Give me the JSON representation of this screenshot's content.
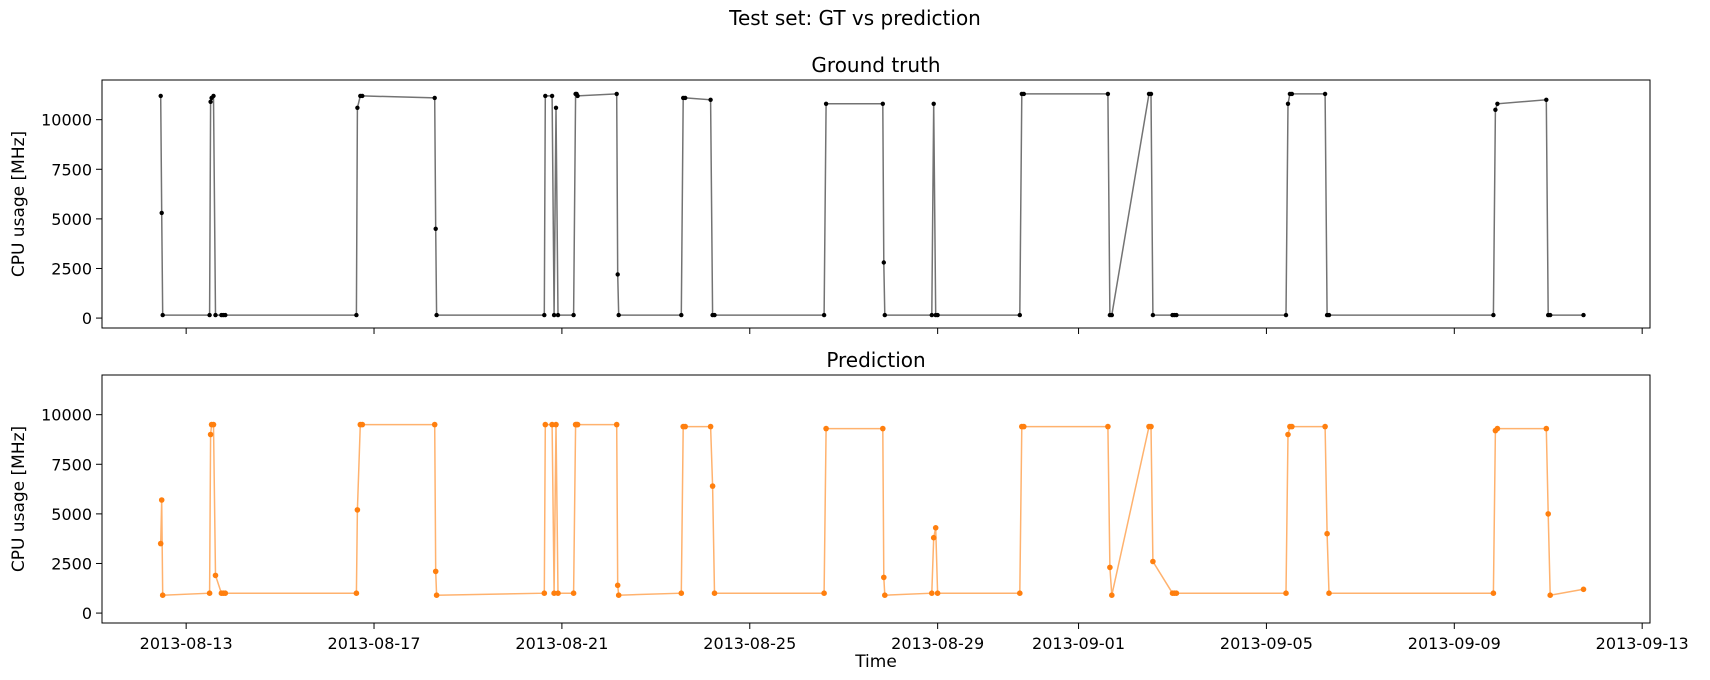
{
  "figure": {
    "suptitle": "Test set: GT vs prediction"
  },
  "chart_data": [
    {
      "type": "line",
      "title": "Ground truth",
      "xlabel": "",
      "ylabel": "CPU usage [MHz]",
      "x_tick_labels_visible": false,
      "ylim": [
        -500,
        12000
      ],
      "xlim": [
        "2013-08-11T05:00",
        "2013-09-13T04:00"
      ],
      "x_ticks": [
        "2013-08-13",
        "2013-08-17",
        "2013-08-21",
        "2013-08-25",
        "2013-08-29",
        "2013-09-01",
        "2013-09-05",
        "2013-09-09",
        "2013-09-13"
      ],
      "y_ticks": [
        0,
        2500,
        5000,
        7500,
        10000
      ],
      "grid": false,
      "series": [
        {
          "color": "#000000",
          "marker": "dot",
          "x": [
            "2013-08-12T11:00",
            "2013-08-12T11:30",
            "2013-08-12T12:00",
            "2013-08-13T12:00",
            "2013-08-13T12:30",
            "2013-08-13T13:00",
            "2013-08-13T14:00",
            "2013-08-13T15:00",
            "2013-08-13T18:00",
            "2013-08-13T19:00",
            "2013-08-13T20:00",
            "2013-08-16T15:00",
            "2013-08-16T15:30",
            "2013-08-16T17:00",
            "2013-08-16T18:00",
            "2013-08-18T07:00",
            "2013-08-18T07:30",
            "2013-08-18T08:00",
            "2013-08-20T15:00",
            "2013-08-20T15:30",
            "2013-08-20T19:00",
            "2013-08-20T20:00",
            "2013-08-20T21:00",
            "2013-08-20T22:00",
            "2013-08-21T06:00",
            "2013-08-21T07:00",
            "2013-08-21T07:30",
            "2013-08-21T08:00",
            "2013-08-22T04:00",
            "2013-08-22T04:30",
            "2013-08-22T05:00",
            "2013-08-23T13:00",
            "2013-08-23T14:00",
            "2013-08-23T15:00",
            "2013-08-24T04:00",
            "2013-08-24T05:00",
            "2013-08-24T06:00",
            "2013-08-26T14:00",
            "2013-08-26T15:00",
            "2013-08-27T20:00",
            "2013-08-27T20:30",
            "2013-08-27T21:00",
            "2013-08-28T21:00",
            "2013-08-28T22:00",
            "2013-08-28T23:00",
            "2013-08-29T00:00",
            "2013-08-30T18:00",
            "2013-08-30T19:00",
            "2013-08-30T20:00",
            "2013-09-01T15:00",
            "2013-09-01T16:00",
            "2013-09-01T17:00",
            "2013-09-02T12:00",
            "2013-09-02T13:00",
            "2013-09-02T14:00",
            "2013-09-03T00:00",
            "2013-09-03T01:00",
            "2013-09-03T02:00",
            "2013-09-05T10:00",
            "2013-09-05T11:00",
            "2013-09-05T12:00",
            "2013-09-05T13:00",
            "2013-09-06T06:00",
            "2013-09-06T07:00",
            "2013-09-06T08:00",
            "2013-09-09T20:00",
            "2013-09-09T21:00",
            "2013-09-09T22:00",
            "2013-09-10T23:00",
            "2013-09-11T00:00",
            "2013-09-11T01:00",
            "2013-09-11T18:00"
          ],
          "y": [
            11200,
            5300,
            150,
            150,
            10900,
            11100,
            11200,
            150,
            150,
            150,
            150,
            150,
            10600,
            11200,
            11200,
            11100,
            4500,
            150,
            150,
            11200,
            11200,
            150,
            10600,
            150,
            150,
            11300,
            11300,
            11200,
            11300,
            2200,
            150,
            150,
            11100,
            11100,
            11000,
            150,
            150,
            150,
            10800,
            10800,
            2800,
            150,
            150,
            10800,
            150,
            150,
            150,
            11300,
            11300,
            11300,
            150,
            150,
            11300,
            11300,
            150,
            150,
            150,
            150,
            150,
            10800,
            11300,
            11300,
            11300,
            150,
            150,
            150,
            10500,
            10800,
            11000,
            150,
            150,
            150
          ]
        }
      ]
    },
    {
      "type": "line",
      "title": "Prediction",
      "xlabel": "Time",
      "ylabel": "CPU usage [MHz]",
      "ylim": [
        -500,
        12000
      ],
      "xlim": [
        "2013-08-11T05:00",
        "2013-09-13T04:00"
      ],
      "x_ticks": [
        "2013-08-13",
        "2013-08-17",
        "2013-08-21",
        "2013-08-25",
        "2013-08-29",
        "2013-09-01",
        "2013-09-05",
        "2013-09-09",
        "2013-09-13"
      ],
      "y_ticks": [
        0,
        2500,
        5000,
        7500,
        10000
      ],
      "grid": false,
      "series": [
        {
          "color": "#ff7f0e",
          "marker": "dot",
          "x": [
            "2013-08-12T11:00",
            "2013-08-12T11:30",
            "2013-08-12T12:00",
            "2013-08-13T12:00",
            "2013-08-13T12:30",
            "2013-08-13T13:00",
            "2013-08-13T14:00",
            "2013-08-13T15:00",
            "2013-08-13T18:00",
            "2013-08-13T19:00",
            "2013-08-13T20:00",
            "2013-08-16T15:00",
            "2013-08-16T15:30",
            "2013-08-16T17:00",
            "2013-08-16T18:00",
            "2013-08-18T07:00",
            "2013-08-18T07:30",
            "2013-08-18T08:00",
            "2013-08-20T15:00",
            "2013-08-20T15:30",
            "2013-08-20T19:00",
            "2013-08-20T20:00",
            "2013-08-20T21:00",
            "2013-08-20T22:00",
            "2013-08-21T06:00",
            "2013-08-21T07:00",
            "2013-08-21T07:30",
            "2013-08-21T08:00",
            "2013-08-22T04:00",
            "2013-08-22T04:30",
            "2013-08-22T05:00",
            "2013-08-23T13:00",
            "2013-08-23T14:00",
            "2013-08-23T15:00",
            "2013-08-24T04:00",
            "2013-08-24T05:00",
            "2013-08-24T06:00",
            "2013-08-26T14:00",
            "2013-08-26T15:00",
            "2013-08-27T20:00",
            "2013-08-27T20:30",
            "2013-08-27T21:00",
            "2013-08-28T21:00",
            "2013-08-28T22:00",
            "2013-08-28T23:00",
            "2013-08-29T00:00",
            "2013-08-30T18:00",
            "2013-08-30T19:00",
            "2013-08-30T20:00",
            "2013-09-01T15:00",
            "2013-09-01T16:00",
            "2013-09-01T17:00",
            "2013-09-02T12:00",
            "2013-09-02T13:00",
            "2013-09-02T14:00",
            "2013-09-03T00:00",
            "2013-09-03T01:00",
            "2013-09-03T02:00",
            "2013-09-05T10:00",
            "2013-09-05T11:00",
            "2013-09-05T12:00",
            "2013-09-05T13:00",
            "2013-09-06T06:00",
            "2013-09-06T07:00",
            "2013-09-06T08:00",
            "2013-09-09T20:00",
            "2013-09-09T21:00",
            "2013-09-09T22:00",
            "2013-09-10T23:00",
            "2013-09-11T00:00",
            "2013-09-11T01:00",
            "2013-09-11T18:00"
          ],
          "y": [
            3500,
            5700,
            900,
            1000,
            9000,
            9500,
            9500,
            1900,
            1000,
            1000,
            1000,
            1000,
            5200,
            9500,
            9500,
            9500,
            2100,
            900,
            1000,
            9500,
            9500,
            1000,
            9500,
            1000,
            1000,
            9500,
            9500,
            9500,
            9500,
            1400,
            900,
            1000,
            9400,
            9400,
            9400,
            6400,
            1000,
            1000,
            9300,
            9300,
            1800,
            900,
            1000,
            3800,
            4300,
            1000,
            1000,
            9400,
            9400,
            9400,
            2300,
            900,
            9400,
            9400,
            2600,
            1000,
            1000,
            1000,
            1000,
            9000,
            9400,
            9400,
            9400,
            4000,
            1000,
            1000,
            9200,
            9300,
            9300,
            5000,
            900,
            1200
          ]
        }
      ]
    }
  ]
}
